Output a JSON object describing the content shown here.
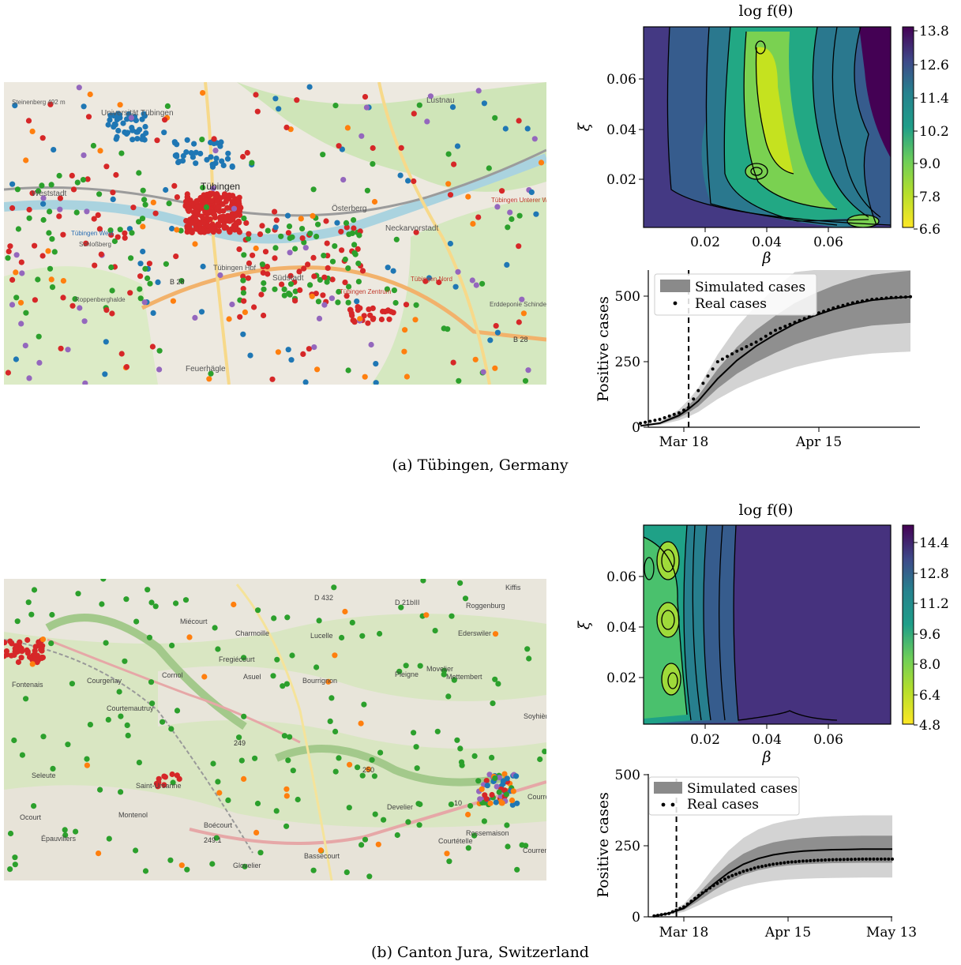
{
  "panels": [
    {
      "id": "a",
      "caption": "(a) Tübingen, Germany",
      "map": {
        "place_labels": [
          "Tübingen",
          "Lustnau",
          "Universität Tübingen",
          "Weststadt",
          "Südstadt",
          "Österberg",
          "Neckarvorstadt",
          "Tübingen Nord",
          "Tübingen Zentrum",
          "Tübingen Hbf",
          "Steinenberg 492 m",
          "Schloßberg",
          "B 28",
          "B 28",
          "Tübingen West",
          "Tübingen Unterer Wert",
          "Erddeponie Schinderklinge",
          "Roppenberghalde",
          "Feuerhägle"
        ]
      },
      "contour": {
        "title": "log f(θ)",
        "xlabel": "β",
        "ylabel": "ξ",
        "xticks": [
          0.02,
          0.04,
          0.06
        ],
        "yticks": [
          0.02,
          0.04,
          0.06
        ],
        "xlim": [
          0.0,
          0.08
        ],
        "ylim": [
          0.0,
          0.08
        ],
        "colorbar_ticks": [
          "13.8",
          "12.6",
          "11.4",
          "10.2",
          "9.0",
          "7.8",
          "6.6"
        ],
        "colorbar_range": [
          6.6,
          13.8
        ]
      },
      "cases": {
        "ylabel": "Positive cases",
        "yticks": [
          "0",
          "250",
          "500"
        ],
        "xtick_labels": [
          "Mar 18",
          "Apr 15"
        ],
        "legend": {
          "simulated": "Simulated cases",
          "real": "Real cases"
        }
      }
    },
    {
      "id": "b",
      "caption": "(b) Canton Jura, Switzerland",
      "map": {
        "place_labels": [
          "D 432",
          "D 21bIII",
          "Kiffis",
          "Roggenburg",
          "Miécourt",
          "Charmoille",
          "Lucelle",
          "Ederswiler",
          "Fregiécourt",
          "Cornol",
          "Courgenay",
          "Fontenais",
          "Courtemautruy",
          "Asuel",
          "Bourrignon",
          "Mettembert",
          "Movelier",
          "Pleigne",
          "Soyhières",
          "249",
          "250",
          "Seleute",
          "Saint-Ursanne",
          "Montenol",
          "Boécourt",
          "249.1",
          "Glovelier",
          "Bassecourt",
          "Develier",
          "Courtételle",
          "Rossemaison",
          "Épauvillers",
          "Ocourt",
          "10",
          "Courroux",
          "Courrendlin"
        ]
      },
      "contour": {
        "title": "log f(θ)",
        "xlabel": "β",
        "ylabel": "ξ",
        "xticks": [
          0.02,
          0.04,
          0.06
        ],
        "yticks": [
          0.02,
          0.04,
          0.06
        ],
        "xlim": [
          0.0,
          0.08
        ],
        "ylim": [
          0.0,
          0.08
        ],
        "colorbar_ticks": [
          "14.4",
          "12.8",
          "11.2",
          "9.6",
          "8.0",
          "6.4",
          "4.8"
        ],
        "colorbar_range": [
          4.8,
          14.4
        ]
      },
      "cases": {
        "ylabel": "Positive cases",
        "yticks": [
          "0",
          "250",
          "500"
        ],
        "xtick_labels": [
          "Mar 18",
          "Apr 15",
          "May 13"
        ],
        "legend": {
          "simulated": "Simulated cases",
          "real": "Real cases"
        }
      }
    }
  ],
  "chart_data": [
    {
      "type": "line",
      "panel": "a",
      "ylabel": "Positive cases",
      "x": [
        "Mar 09",
        "Mar 13",
        "Mar 17",
        "Mar 19",
        "Mar 21",
        "Mar 25",
        "Mar 29",
        "Apr 02",
        "Apr 06",
        "Apr 10",
        "Apr 14",
        "Apr 18",
        "Apr 22",
        "Apr 26",
        "Apr 30",
        "May 04"
      ],
      "series": [
        {
          "name": "Simulated cases",
          "values": [
            5,
            15,
            45,
            70,
            100,
            185,
            255,
            310,
            355,
            395,
            425,
            450,
            470,
            485,
            492,
            498
          ]
        },
        {
          "name": "Real cases",
          "values": [
            15,
            30,
            55,
            75,
            140,
            250,
            290,
            325,
            370,
            400,
            430,
            455,
            475,
            488,
            495,
            498
          ]
        }
      ],
      "ylim": [
        0,
        600
      ],
      "intervention_line": "Mar 19"
    },
    {
      "type": "line",
      "panel": "b",
      "ylabel": "Positive cases",
      "x": [
        "Mar 10",
        "Mar 14",
        "Mar 18",
        "Mar 22",
        "Mar 26",
        "Mar 30",
        "Apr 03",
        "Apr 07",
        "Apr 11",
        "Apr 15",
        "Apr 19",
        "Apr 23",
        "Apr 27",
        "May 01",
        "May 05",
        "May 09",
        "May 13"
      ],
      "series": [
        {
          "name": "Simulated cases",
          "values": [
            3,
            12,
            30,
            70,
            115,
            155,
            185,
            205,
            218,
            226,
            231,
            234,
            236,
            237,
            238,
            238,
            238
          ]
        },
        {
          "name": "Real cases",
          "values": [
            3,
            12,
            35,
            75,
            110,
            140,
            160,
            175,
            185,
            192,
            196,
            199,
            201,
            202,
            203,
            203,
            203
          ]
        }
      ],
      "ylim": [
        0,
        500
      ],
      "intervention_line": "Mar 16"
    }
  ]
}
